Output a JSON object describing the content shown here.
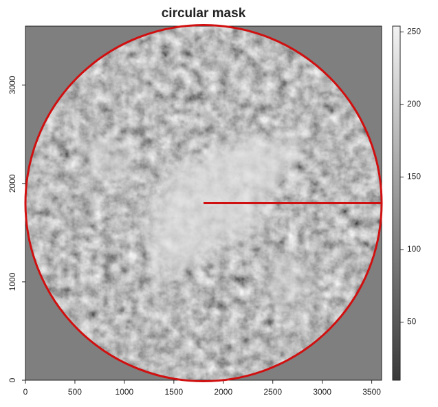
{
  "chart_data": {
    "type": "raster",
    "title": "circular mask",
    "xlim": [
      0,
      3600
    ],
    "xticks": [
      0,
      500,
      1000,
      1500,
      2000,
      2500,
      3000,
      3500
    ],
    "ylim": [
      0,
      3600
    ],
    "yticks": [
      0,
      1000,
      2000,
      3000
    ],
    "zlim": [
      10,
      254
    ],
    "zticks": [
      50,
      100,
      150,
      200,
      250
    ],
    "mask_circle": {
      "cx": 1800,
      "cy": 1800,
      "r": 1800,
      "color": "#d01010"
    },
    "radius_line": {
      "x": [
        1800,
        3600
      ],
      "y": [
        1800,
        1800
      ],
      "color": "#d01010"
    }
  }
}
